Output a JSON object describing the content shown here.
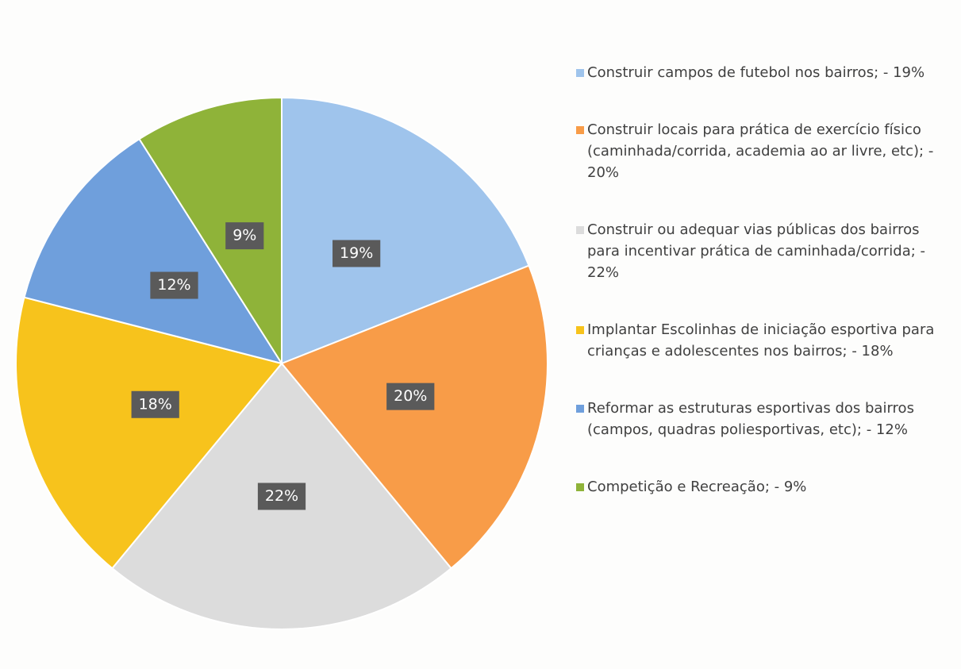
{
  "chart_data": {
    "type": "pie",
    "categories": [
      "Construir campos de futebol nos bairros;  - 19%",
      "Construir locais para prática de exercício físico (caminhada/corrida, academia ao ar livre, etc);  - 20%",
      "Construir ou adequar vias públicas dos bairros para incentivar prática de caminhada/corrida;  - 22%",
      "Implantar Escolinhas de iniciação esportiva para crianças e adolescentes nos bairros;  - 18%",
      "Reformar as estruturas esportivas dos bairros (campos, quadras poliesportivas, etc);  - 12%",
      "Competição e Recreação;  - 9%"
    ],
    "values": [
      19,
      20,
      22,
      18,
      12,
      9
    ],
    "value_labels": [
      "19%",
      "20%",
      "22%",
      "18%",
      "12%",
      "9%"
    ],
    "colors": [
      "#9fc4ec",
      "#f89c48",
      "#dcdcdc",
      "#f7c31c",
      "#6f9fdc",
      "#8fb339"
    ]
  }
}
